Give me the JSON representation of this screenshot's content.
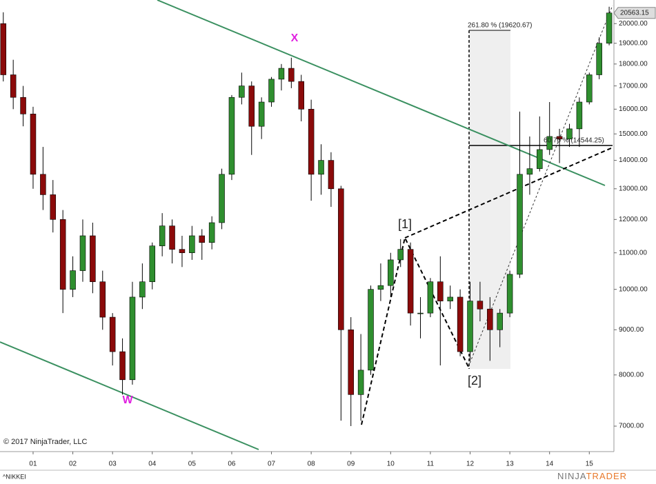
{
  "chart_data": {
    "type": "candlestick",
    "symbol": "^NIKKEI",
    "copyright": "© 2017 NinjaTrader, LLC",
    "brand": [
      "NINJA",
      "TRADER"
    ],
    "log_scale": true,
    "up_color": "#2f8f2f",
    "down_color": "#8b0a0a",
    "x": [
      0.25,
      0.5,
      0.75,
      1.0,
      1.25,
      1.5,
      1.75,
      2.0,
      2.25,
      2.5,
      2.75,
      3.0,
      3.25,
      3.5,
      3.75,
      4.0,
      4.25,
      4.5,
      4.75,
      5.0,
      5.25,
      5.5,
      5.75,
      6.0,
      6.25,
      6.5,
      6.75,
      7.0,
      7.25,
      7.5,
      7.75,
      8.0,
      8.25,
      8.5,
      8.75,
      9.0,
      9.25,
      9.5,
      9.75,
      10.0,
      10.25,
      10.5,
      10.75,
      11.0,
      11.25,
      11.5,
      11.75,
      12.0,
      12.25,
      12.5,
      12.75,
      13.0,
      13.25,
      13.5,
      13.75,
      14.0,
      14.25,
      14.5,
      14.75,
      15.0,
      15.25,
      15.5
    ],
    "open": [
      20000,
      17500,
      16500,
      15800,
      13500,
      12800,
      12000,
      10000,
      10500,
      11500,
      10200,
      9300,
      8500,
      7900,
      9800,
      10200,
      11200,
      11800,
      11100,
      11000,
      11500,
      11300,
      11900,
      13500,
      16500,
      17000,
      15300,
      16300,
      17300,
      17800,
      17200,
      16000,
      13500,
      14000,
      13000,
      9000,
      7600,
      8100,
      10000,
      10100,
      10800,
      11100,
      9400,
      9400,
      10200,
      9700,
      9800,
      8500,
      9700,
      9500,
      9000,
      9400,
      10400,
      13500,
      13700,
      14400,
      14900,
      14800,
      15200,
      16300,
      17500,
      19000
    ],
    "high": [
      20600,
      18200,
      17000,
      16100,
      14500,
      13300,
      12300,
      10900,
      12000,
      11900,
      10500,
      9400,
      8800,
      10200,
      10700,
      11300,
      12200,
      12000,
      11500,
      11800,
      11700,
      12100,
      13700,
      16600,
      17600,
      17200,
      16500,
      17400,
      18000,
      18300,
      17500,
      16400,
      14600,
      14300,
      13100,
      9300,
      8900,
      10100,
      10700,
      11000,
      11400,
      11300,
      9800,
      10300,
      10900,
      10100,
      10000,
      10200,
      10200,
      9800,
      9500,
      10500,
      15900,
      14900,
      15700,
      16300,
      15200,
      15400,
      16500,
      17600,
      19300,
      20900
    ],
    "low": [
      17200,
      16000,
      15300,
      13000,
      12300,
      11600,
      9400,
      9800,
      10200,
      9900,
      9000,
      8200,
      7600,
      7800,
      9500,
      10000,
      10900,
      10700,
      10600,
      10800,
      10800,
      11100,
      11700,
      13300,
      16200,
      14200,
      14800,
      16100,
      16800,
      16900,
      15500,
      12600,
      12800,
      12400,
      7100,
      7000,
      7100,
      8000,
      9700,
      9800,
      10600,
      9100,
      8800,
      9300,
      8200,
      9500,
      8400,
      8300,
      9200,
      8300,
      8600,
      9300,
      10300,
      12800,
      13600,
      14200,
      13900,
      14500,
      14500,
      16200,
      17300,
      18900
    ],
    "close": [
      17500,
      16500,
      15800,
      13500,
      12800,
      12000,
      10000,
      10500,
      11500,
      10200,
      9300,
      8500,
      7900,
      9800,
      10200,
      11200,
      11800,
      11100,
      11000,
      11500,
      11300,
      11900,
      13500,
      16500,
      17000,
      15300,
      16300,
      17300,
      17800,
      17200,
      16000,
      13500,
      14000,
      13000,
      9000,
      7600,
      8100,
      10000,
      10100,
      10800,
      11100,
      9400,
      9400,
      10200,
      9700,
      9800,
      8500,
      9700,
      9500,
      9000,
      9400,
      10400,
      13500,
      13700,
      14400,
      14900,
      14800,
      15200,
      16300,
      17500,
      19000,
      20563.15
    ],
    "xlim": [
      0.167,
      15.62
    ],
    "xticks": [
      {
        "value": 1,
        "label": "01"
      },
      {
        "value": 2,
        "label": "02"
      },
      {
        "value": 3,
        "label": "03"
      },
      {
        "value": 4,
        "label": "04"
      },
      {
        "value": 5,
        "label": "05"
      },
      {
        "value": 6,
        "label": "06"
      },
      {
        "value": 7,
        "label": "07"
      },
      {
        "value": 8,
        "label": "08"
      },
      {
        "value": 9,
        "label": "09"
      },
      {
        "value": 10,
        "label": "10"
      },
      {
        "value": 11,
        "label": "11"
      },
      {
        "value": 12,
        "label": "12"
      },
      {
        "value": 13,
        "label": "13"
      },
      {
        "value": 14,
        "label": "14"
      },
      {
        "value": 15,
        "label": "15"
      }
    ],
    "ylim": [
      6550,
      21270
    ],
    "yticks": [
      {
        "value": 7000,
        "label": "7000.00"
      },
      {
        "value": 8000,
        "label": "8000.00"
      },
      {
        "value": 9000,
        "label": "9000.00"
      },
      {
        "value": 10000,
        "label": "10000.00"
      },
      {
        "value": 11000,
        "label": "11000.00"
      },
      {
        "value": 12000,
        "label": "12000.00"
      },
      {
        "value": 13000,
        "label": "13000.00"
      },
      {
        "value": 14000,
        "label": "14000.00"
      },
      {
        "value": 15000,
        "label": "15000.00"
      },
      {
        "value": 16000,
        "label": "16000.00"
      },
      {
        "value": 17000,
        "label": "17000.00"
      },
      {
        "value": 18000,
        "label": "18000.00"
      },
      {
        "value": 19000,
        "label": "19000.00"
      },
      {
        "value": 20000,
        "label": "20000.00"
      }
    ],
    "annotations": {
      "x_point": "X",
      "w_point": "W",
      "wave1": "[1]",
      "wave2": "[2]",
      "fib_top": "261.80 % (19620.67)",
      "fib_mid": "60.70 % (14544.25)"
    }
  }
}
